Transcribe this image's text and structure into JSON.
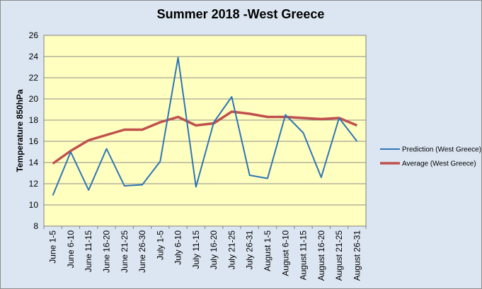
{
  "chart_data": {
    "type": "line",
    "title": "Summer 2018 -West Greece",
    "xlabel": "",
    "ylabel": "Temperature 850hPa",
    "ylim": [
      8,
      26
    ],
    "yticks": [
      8,
      10,
      12,
      14,
      16,
      18,
      20,
      22,
      24,
      26
    ],
    "grid": true,
    "legend_position": "right",
    "plot_background": "#ffffc0",
    "chart_background": "#dce6f2",
    "categories": [
      "June 1-5",
      "June 6-10",
      "June 11-15",
      "June 16-20",
      "June 21-25",
      "June 26-30",
      "July 1-5",
      "July 6-10",
      "July 11-15",
      "July 16-20",
      "July 21-25",
      "July 26-31",
      "August 1-5",
      "August 6-10",
      "August 11-15",
      "August 16-20",
      "August 21-25",
      "August 26-31"
    ],
    "series": [
      {
        "name": "Prediction (West Greece)",
        "color": "#2e75b6",
        "values": [
          10.9,
          15.0,
          11.4,
          15.3,
          11.8,
          11.9,
          14.1,
          23.9,
          11.7,
          17.8,
          20.2,
          12.8,
          12.5,
          18.5,
          16.8,
          12.6,
          18.2,
          16.0
        ]
      },
      {
        "name": "Average (West Greece)",
        "color": "#c0504d",
        "values": [
          13.9,
          15.1,
          16.1,
          16.6,
          17.1,
          17.1,
          17.8,
          18.3,
          17.5,
          17.7,
          18.8,
          18.6,
          18.3,
          18.3,
          18.2,
          18.1,
          18.2,
          17.5
        ]
      }
    ]
  }
}
